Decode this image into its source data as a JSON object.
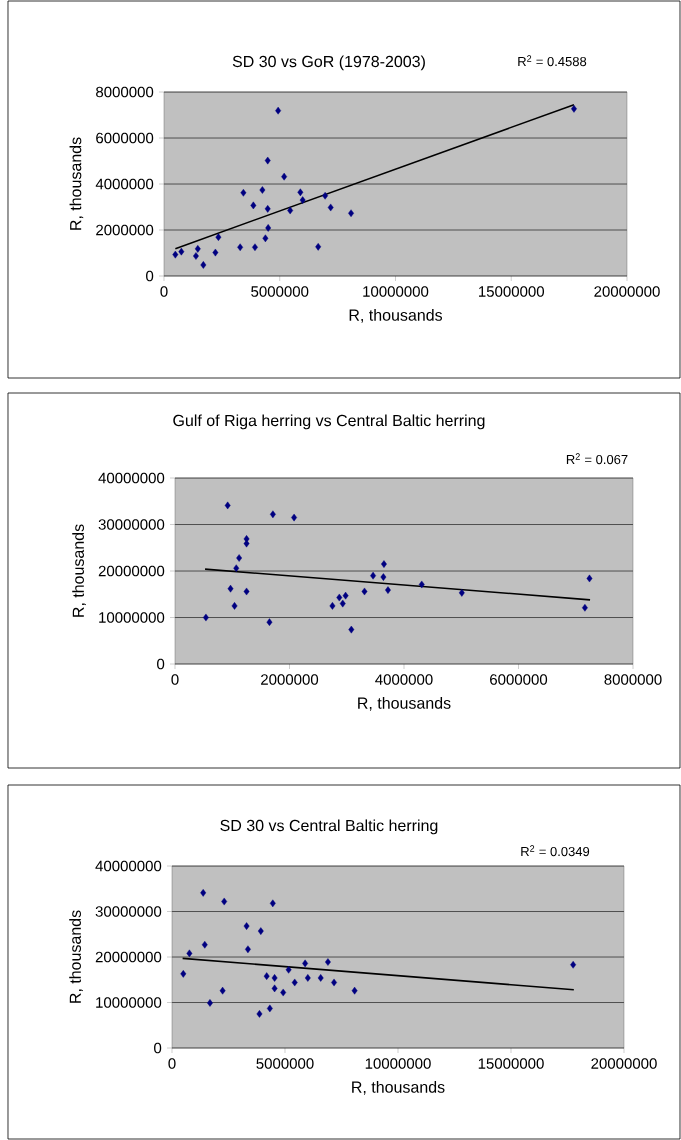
{
  "chart_data": [
    {
      "type": "scatter",
      "title": "SD 30 vs GoR (1978-2003)",
      "xlabel": "R, thousands",
      "ylabel": "R, thousands",
      "annotations": [
        "R$^{2}$ = 0.4588"
      ],
      "marker": "diamond",
      "grid": "y",
      "xlim": [
        0,
        20000000
      ],
      "xticks": [
        0,
        5000000,
        10000000,
        15000000,
        20000000
      ],
      "ylim": [
        0,
        8000000
      ],
      "yticks": [
        0,
        2000000,
        4000000,
        6000000,
        8000000
      ],
      "series": [
        {
          "color": "#000080",
          "x": [
            490000,
            750000,
            1380000,
            1460000,
            1700000,
            2220000,
            2350000,
            3290000,
            3430000,
            3860000,
            3930000,
            4250000,
            4380000,
            4480000,
            4480000,
            4500000,
            4930000,
            5190000,
            5450000,
            5890000,
            5990000,
            6660000,
            6960000,
            7200000,
            8080000,
            17710000
          ],
          "values": [
            930000,
            1060000,
            870000,
            1180000,
            480000,
            1020000,
            1690000,
            1250000,
            3620000,
            3070000,
            1250000,
            3740000,
            1640000,
            5020000,
            2920000,
            2090000,
            7190000,
            4320000,
            2850000,
            3640000,
            3300000,
            1270000,
            3490000,
            2980000,
            2730000,
            7270000
          ]
        },
        {
          "type": "line",
          "color": "#000000",
          "marker": "none",
          "x": [
            490000,
            17710000
          ],
          "values": [
            1190000,
            7450000
          ]
        }
      ]
    },
    {
      "type": "scatter",
      "title": "Gulf of Riga herring  vs Central Baltic herring",
      "xlabel": "R, thousands",
      "ylabel": "R, thousands",
      "annotations": [
        "R$^{2}$ = 0.067"
      ],
      "marker": "diamond",
      "grid": "y",
      "xlim": [
        0,
        8000000
      ],
      "xticks": [
        0,
        2000000,
        4000000,
        6000000,
        8000000
      ],
      "ylim": [
        0,
        40000000
      ],
      "yticks": [
        0,
        10000000,
        20000000,
        30000000,
        40000000
      ],
      "series": [
        {
          "color": "#000080",
          "x": [
            540000,
            920000,
            970000,
            1040000,
            1070000,
            1120000,
            1250000,
            1250000,
            1250000,
            1650000,
            1710000,
            2080000,
            2750000,
            2870000,
            2930000,
            2980000,
            3080000,
            3310000,
            3460000,
            3640000,
            3650000,
            3720000,
            4310000,
            5010000,
            7160000,
            7240000
          ],
          "values": [
            10000000,
            34100000,
            16200000,
            12500000,
            20600000,
            22800000,
            26900000,
            25900000,
            15600000,
            9000000,
            32200000,
            31500000,
            12500000,
            14300000,
            13000000,
            14700000,
            7400000,
            15600000,
            19000000,
            18700000,
            21500000,
            15900000,
            17100000,
            15300000,
            12100000,
            18400000
          ]
        },
        {
          "type": "line",
          "color": "#000000",
          "marker": "none",
          "x": [
            525000,
            7250000
          ],
          "values": [
            20400000,
            13800000
          ]
        }
      ]
    },
    {
      "type": "scatter",
      "title": "SD 30 vs Central Baltic herring",
      "xlabel": "R, thousands",
      "ylabel": "R, thousands",
      "annotations": [
        "R$^{2}$ = 0.0349"
      ],
      "marker": "diamond",
      "grid": "y",
      "xlim": [
        0,
        20000000
      ],
      "xticks": [
        0,
        5000000,
        10000000,
        15000000,
        20000000
      ],
      "ylim": [
        0,
        40000000
      ],
      "yticks": [
        0,
        10000000,
        20000000,
        30000000,
        40000000
      ],
      "series": [
        {
          "color": "#000080",
          "x": [
            500000,
            770000,
            1380000,
            1450000,
            1680000,
            2240000,
            2310000,
            3300000,
            3360000,
            3870000,
            3930000,
            4190000,
            4330000,
            4460000,
            4540000,
            4540000,
            4920000,
            5160000,
            5430000,
            5890000,
            6010000,
            6580000,
            6900000,
            7170000,
            8080000,
            17750000
          ],
          "values": [
            16300000,
            20800000,
            34100000,
            22700000,
            9900000,
            12600000,
            32200000,
            26800000,
            21700000,
            7500000,
            25700000,
            15800000,
            8700000,
            31800000,
            15400000,
            13100000,
            12200000,
            17200000,
            14400000,
            18600000,
            15400000,
            15400000,
            18900000,
            14400000,
            12600000,
            18300000
          ]
        },
        {
          "type": "line",
          "color": "#000000",
          "marker": "none",
          "x": [
            469000,
            17780000
          ],
          "values": [
            19700000,
            12800000
          ]
        }
      ]
    }
  ]
}
